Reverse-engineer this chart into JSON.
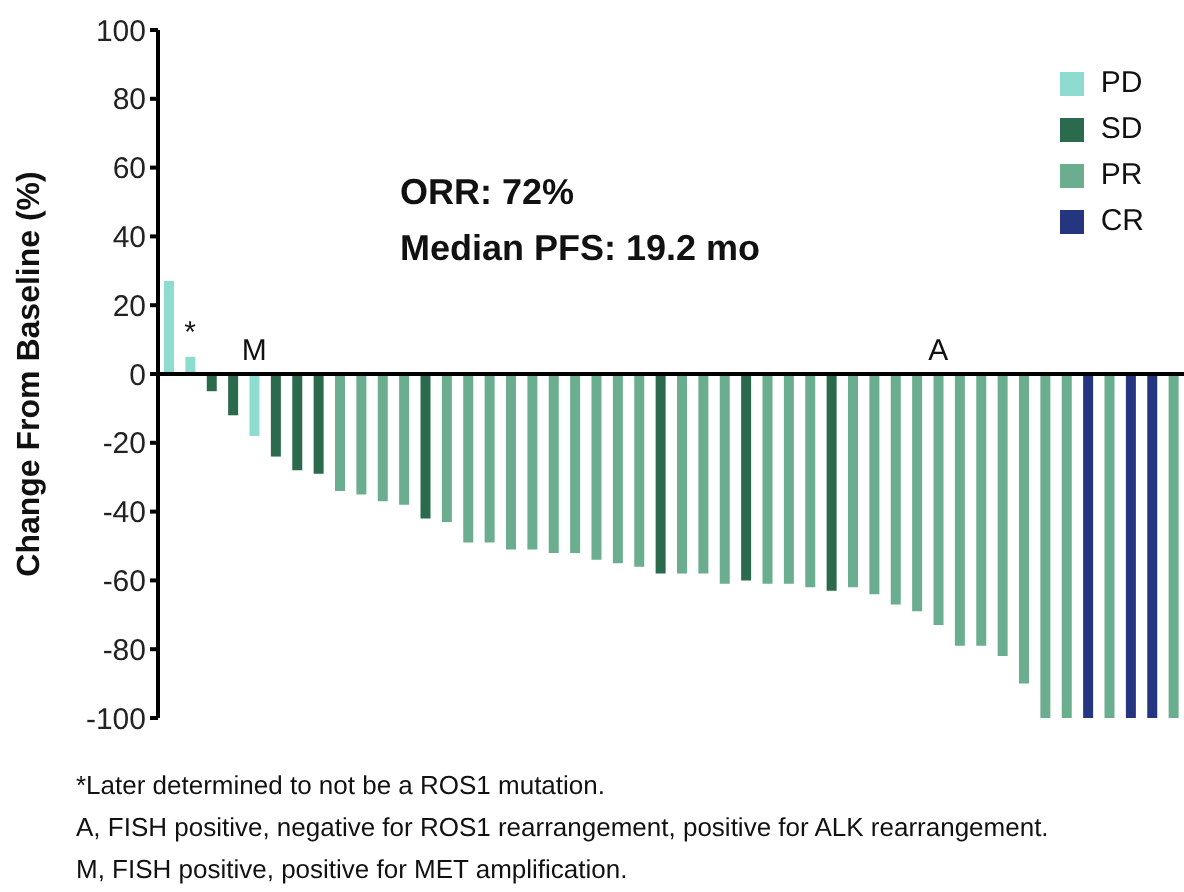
{
  "chart_data": {
    "type": "bar",
    "ylabel": "Change From Baseline (%)",
    "ylim": [
      -100,
      100
    ],
    "yticks": [
      -100,
      -80,
      -60,
      -40,
      -20,
      0,
      20,
      40,
      60,
      80,
      100
    ],
    "legend": "top right",
    "stacked": true,
    "categories": [
      null,
      null,
      null,
      null,
      null,
      null,
      null,
      null,
      null,
      null,
      null,
      null,
      null,
      null,
      null,
      null,
      null,
      null,
      null,
      null,
      null,
      null,
      null,
      null,
      null,
      null,
      null,
      null,
      null,
      null,
      null,
      null,
      null,
      null,
      null,
      null,
      null,
      null,
      null,
      null,
      null,
      null,
      null,
      null,
      null,
      null,
      null,
      null
    ],
    "series": [
      {
        "name": "PD",
        "color": "#8ddccf",
        "values": [
          27,
          5,
          null,
          null,
          -18,
          null,
          null,
          null,
          null,
          null,
          null,
          null,
          null,
          null,
          null,
          null,
          null,
          null,
          null,
          null,
          null,
          null,
          null,
          null,
          null,
          null,
          null,
          null,
          null,
          null,
          null,
          null,
          null,
          null,
          null,
          null,
          null,
          null,
          null,
          null,
          null,
          null,
          null,
          null,
          null,
          null,
          null,
          null
        ],
        "value_labels": [
          null,
          "*",
          null,
          null,
          "M",
          null,
          null,
          null,
          null,
          null,
          null,
          null,
          null,
          null,
          null,
          null,
          null,
          null,
          null,
          null,
          null,
          null,
          null,
          null,
          null,
          null,
          null,
          null,
          null,
          null,
          null,
          null,
          null,
          null,
          null,
          null,
          null,
          null,
          null,
          null,
          null,
          null,
          null,
          null,
          null,
          null,
          null,
          null
        ]
      },
      {
        "name": "SD",
        "color": "#2b6a4c",
        "values": [
          null,
          null,
          -5,
          -12,
          null,
          -24,
          -28,
          -29,
          null,
          null,
          null,
          null,
          -42,
          null,
          null,
          null,
          null,
          null,
          null,
          null,
          null,
          null,
          null,
          -58,
          null,
          null,
          null,
          -60,
          null,
          null,
          null,
          -63,
          null,
          null,
          null,
          null,
          null,
          null,
          null,
          null,
          null,
          null,
          null,
          null,
          null,
          null,
          null,
          null
        ]
      },
      {
        "name": "PR",
        "color": "#6aae8f",
        "values": [
          null,
          null,
          null,
          null,
          null,
          null,
          null,
          null,
          -34,
          -35,
          -37,
          -38,
          null,
          -43,
          -49,
          -49,
          -51,
          -51,
          -52,
          -52,
          -54,
          -55,
          -56,
          null,
          -58,
          -58,
          -61,
          null,
          -61,
          -61,
          -62,
          null,
          -62,
          -64,
          -67,
          -69,
          -73,
          -79,
          -79,
          -82,
          -90,
          -100,
          -100,
          null,
          -100,
          null,
          null,
          -100
        ],
        "value_labels": [
          null,
          null,
          null,
          null,
          null,
          null,
          null,
          null,
          null,
          null,
          null,
          null,
          null,
          null,
          null,
          null,
          null,
          null,
          null,
          null,
          null,
          null,
          null,
          null,
          null,
          null,
          null,
          null,
          null,
          null,
          null,
          null,
          null,
          null,
          null,
          null,
          "A",
          null,
          null,
          null,
          null,
          null,
          null,
          null,
          null,
          null,
          null,
          null
        ]
      },
      {
        "name": "CR",
        "color": "#253580",
        "values": [
          null,
          null,
          null,
          null,
          null,
          null,
          null,
          null,
          null,
          null,
          null,
          null,
          null,
          null,
          null,
          null,
          null,
          null,
          null,
          null,
          null,
          null,
          null,
          null,
          null,
          null,
          null,
          null,
          null,
          null,
          null,
          null,
          null,
          null,
          null,
          null,
          null,
          null,
          null,
          null,
          null,
          null,
          null,
          -100,
          null,
          -100,
          -100,
          null
        ]
      }
    ],
    "annotations": [
      "ORR: 72%",
      "Median PFS: 19.2 mo",
      "*Later determined to not be a ROS1 mutation.",
      "A, FISH positive, negative for ROS1 rearrangement, positive for ALK rearrangement.",
      "M, FISH positive, positive for MET amplification."
    ]
  }
}
